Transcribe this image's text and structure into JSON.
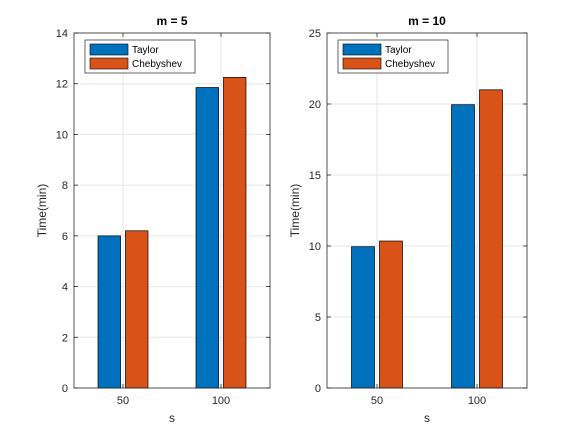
{
  "colors": {
    "taylor": "#0072BD",
    "chebyshev": "#D95319",
    "grid": "#e6e6e6",
    "axis": "#262626"
  },
  "chart_data": [
    {
      "type": "bar",
      "title": "m = 5",
      "xlabel": "s",
      "ylabel": "Time(min)",
      "categories": [
        "50",
        "100"
      ],
      "ylim": [
        0,
        14
      ],
      "yticks": [
        0,
        2,
        4,
        6,
        8,
        10,
        12,
        14
      ],
      "grid": true,
      "legend_position": "top-left",
      "series": [
        {
          "name": "Taylor",
          "values": [
            6.0,
            11.85
          ]
        },
        {
          "name": "Chebyshev",
          "values": [
            6.2,
            12.25
          ]
        }
      ]
    },
    {
      "type": "bar",
      "title": "m = 10",
      "xlabel": "s",
      "ylabel": "Time(min)",
      "categories": [
        "50",
        "100"
      ],
      "ylim": [
        0,
        25
      ],
      "yticks": [
        0,
        5,
        10,
        15,
        20,
        25
      ],
      "grid": true,
      "legend_position": "top-left",
      "series": [
        {
          "name": "Taylor",
          "values": [
            9.95,
            19.95
          ]
        },
        {
          "name": "Chebyshev",
          "values": [
            10.35,
            21.0
          ]
        }
      ]
    }
  ]
}
